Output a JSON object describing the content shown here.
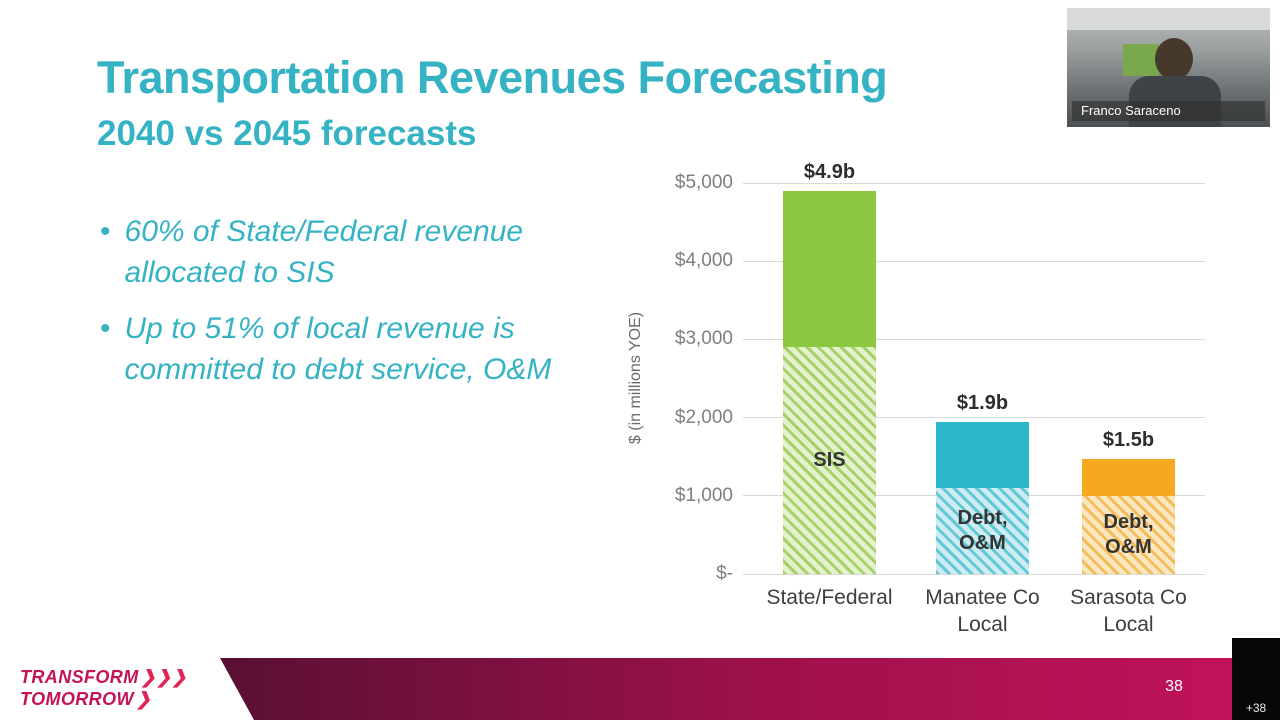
{
  "slide": {
    "title": "Transportation Revenues Forecasting",
    "subtitle": "2040 vs 2045 forecasts",
    "bullet_marker": "•",
    "bullets": [
      "60% of State/Federal revenue allocated to SIS",
      "Up to 51% of local revenue is committed to debt service, O&M"
    ],
    "page_number": "38"
  },
  "webcam": {
    "participant_name": "Franco Saraceno"
  },
  "participants_overflow": {
    "count_label": "+38"
  },
  "logo": {
    "line1": "TRANSFORM",
    "line1_chevrons": "❯❯❯",
    "line2": "TOMORROW",
    "line2_chevrons": "❯"
  },
  "colors": {
    "accent": "#35b3c4",
    "logo": "#c31459",
    "band-dark": "#3c0a23",
    "band-bright": "#c4125c"
  },
  "chart_data": {
    "type": "bar",
    "stacked": true,
    "title": "",
    "xlabel": "",
    "ylabel": "$ (in millions YOE)",
    "ylim": [
      0,
      5000
    ],
    "yticks": [
      0,
      1000,
      2000,
      3000,
      4000,
      5000
    ],
    "ytick_labels": [
      "$-",
      "$1,000",
      "$2,000",
      "$3,000",
      "$4,000",
      "$5,000"
    ],
    "grid": true,
    "legend": "none",
    "categories": [
      "State/Federal",
      "Manatee Co Local",
      "Sarasota Co Local"
    ],
    "bars": [
      {
        "category": "State/Federal",
        "total_label": "$4.9b",
        "total_value": 4900,
        "segments": [
          {
            "name": "SIS allocation (hatched)",
            "label": "SIS",
            "value": 2900,
            "pattern": "hatched",
            "color": "#a6d06a",
            "light": "#e4f1cd"
          },
          {
            "name": "remaining state/federal",
            "label": "",
            "value": 2000,
            "pattern": "solid",
            "color": "#8dc63f"
          }
        ]
      },
      {
        "category": "Manatee Co Local",
        "total_label": "$1.9b",
        "total_value": 1950,
        "segments": [
          {
            "name": "debt and O&M commitment (hatched)",
            "label": "Debt,\nO&M",
            "value": 1100,
            "pattern": "hatched",
            "color": "#63c8d6",
            "light": "#cdecf1"
          },
          {
            "name": "remaining local",
            "label": "",
            "value": 850,
            "pattern": "solid",
            "color": "#2bb7ca"
          }
        ]
      },
      {
        "category": "Sarasota Co Local",
        "total_label": "$1.5b",
        "total_value": 1470,
        "segments": [
          {
            "name": "debt and O&M commitment (hatched)",
            "label": "Debt,\nO&M",
            "value": 1000,
            "pattern": "hatched",
            "color": "#f3bc5d",
            "light": "#fbe7bf"
          },
          {
            "name": "remaining local",
            "label": "",
            "value": 470,
            "pattern": "solid",
            "color": "#f6a821"
          }
        ]
      }
    ]
  }
}
